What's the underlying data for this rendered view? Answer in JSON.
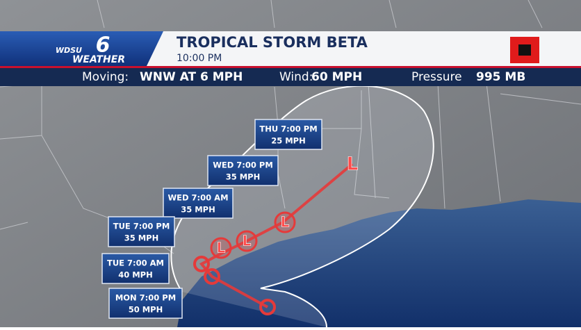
{
  "header": {
    "logo": {
      "station": "WDSU",
      "channel": "6",
      "brand": "WEATHER"
    },
    "title": "TROPICAL STORM BETA",
    "time": "10:00 PM"
  },
  "info_bar": {
    "moving_label": "Moving:",
    "moving_value": "WNW AT 6 MPH",
    "wind_label": "Wind:",
    "wind_value": "60 MPH",
    "pressure_label": "Pressure",
    "pressure_value": "995 MB"
  },
  "forecast_points": [
    {
      "time": "THU 7:00 PM",
      "wind": "25 MPH"
    },
    {
      "time": "WED 7:00 PM",
      "wind": "35 MPH"
    },
    {
      "time": "WED 7:00 AM",
      "wind": "35 MPH"
    },
    {
      "time": "TUE 7:00 PM",
      "wind": "35 MPH"
    },
    {
      "time": "TUE 7:00 AM",
      "wind": "40 MPH"
    },
    {
      "time": "MON 7:00 PM",
      "wind": "50 MPH"
    }
  ],
  "track_markers": [
    "L",
    "L",
    "L",
    "L"
  ]
}
